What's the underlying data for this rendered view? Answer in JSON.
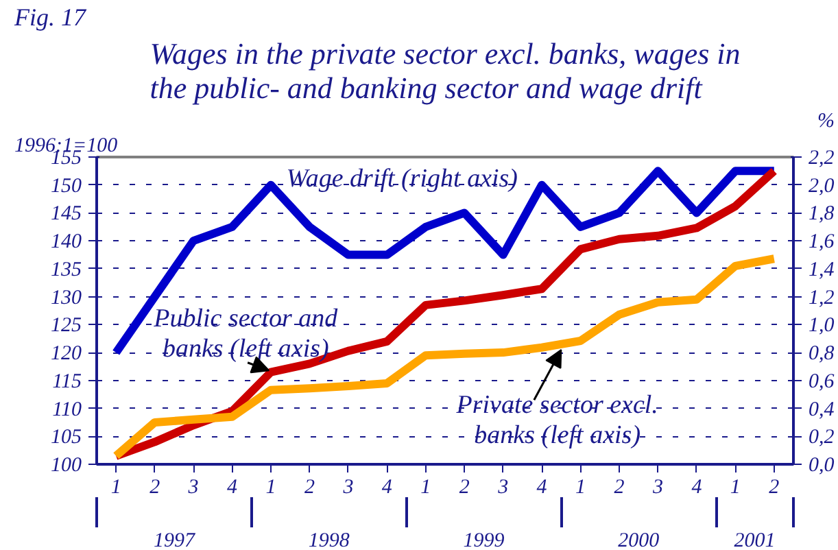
{
  "chart_data": {
    "type": "line",
    "title": "Wages in the private sector excl. banks, wages in the public- and banking sector and wage drift",
    "ylabel": "1996:1=100",
    "y2label": "%",
    "categories": [
      "1",
      "2",
      "3",
      "4",
      "1",
      "2",
      "3",
      "4",
      "1",
      "2",
      "3",
      "4",
      "1",
      "2",
      "3",
      "4",
      "1",
      "2"
    ],
    "series": [
      {
        "name": "Wage drift (right axis)",
        "color": "#0000cc",
        "axis": "y2",
        "values": [
          0.8,
          1.2,
          1.6,
          1.7,
          2.0,
          1.7,
          1.5,
          1.5,
          1.7,
          1.8,
          1.5,
          2.0,
          1.7,
          1.8,
          2.1,
          1.8,
          2.1,
          2.1
        ]
      },
      {
        "name": "Public sector and banks (left axis)",
        "color": "#cc0000",
        "values": [
          101.5,
          104,
          107,
          109.5,
          116.5,
          118,
          120.3,
          122,
          128.5,
          129.3,
          130.3,
          131.4,
          138.5,
          140.3,
          140.9,
          142.3,
          146.2,
          152.5
        ]
      },
      {
        "name": "Private sector excl. banks (left axis)",
        "color": "#ffa500",
        "values": [
          101.5,
          107.5,
          108,
          108.5,
          113.3,
          113.6,
          114,
          114.5,
          119.5,
          119.8,
          120,
          120.9,
          122.1,
          126.8,
          129,
          129.5,
          135.5,
          136.8
        ]
      }
    ],
    "ylim": [
      100,
      155
    ],
    "yticks": [
      100,
      105,
      110,
      115,
      120,
      125,
      130,
      135,
      140,
      145,
      150,
      155
    ],
    "y2lim": [
      0,
      2.2
    ],
    "y2ticks": [
      {
        "value": 0,
        "label": "0,0"
      },
      {
        "value": 0.2,
        "label": "0,2"
      },
      {
        "value": 0.4,
        "label": "0,4"
      },
      {
        "value": 0.6,
        "label": "0,6"
      },
      {
        "value": 0.8,
        "label": "0,8"
      },
      {
        "value": 1.0,
        "label": "1,0"
      },
      {
        "value": 1.2,
        "label": "1,2"
      },
      {
        "value": 1.4,
        "label": "1,4"
      },
      {
        "value": 1.6,
        "label": "1,6"
      },
      {
        "value": 1.8,
        "label": "1,8"
      },
      {
        "value": 2.0,
        "label": "2,0"
      },
      {
        "value": 2.2,
        "label": "2,2"
      }
    ],
    "grid": "y",
    "line_style": "solid",
    "marker": "none",
    "annotations": [
      "Fig. 17",
      "1997",
      "1998",
      "1999",
      "2000",
      "2001"
    ]
  }
}
